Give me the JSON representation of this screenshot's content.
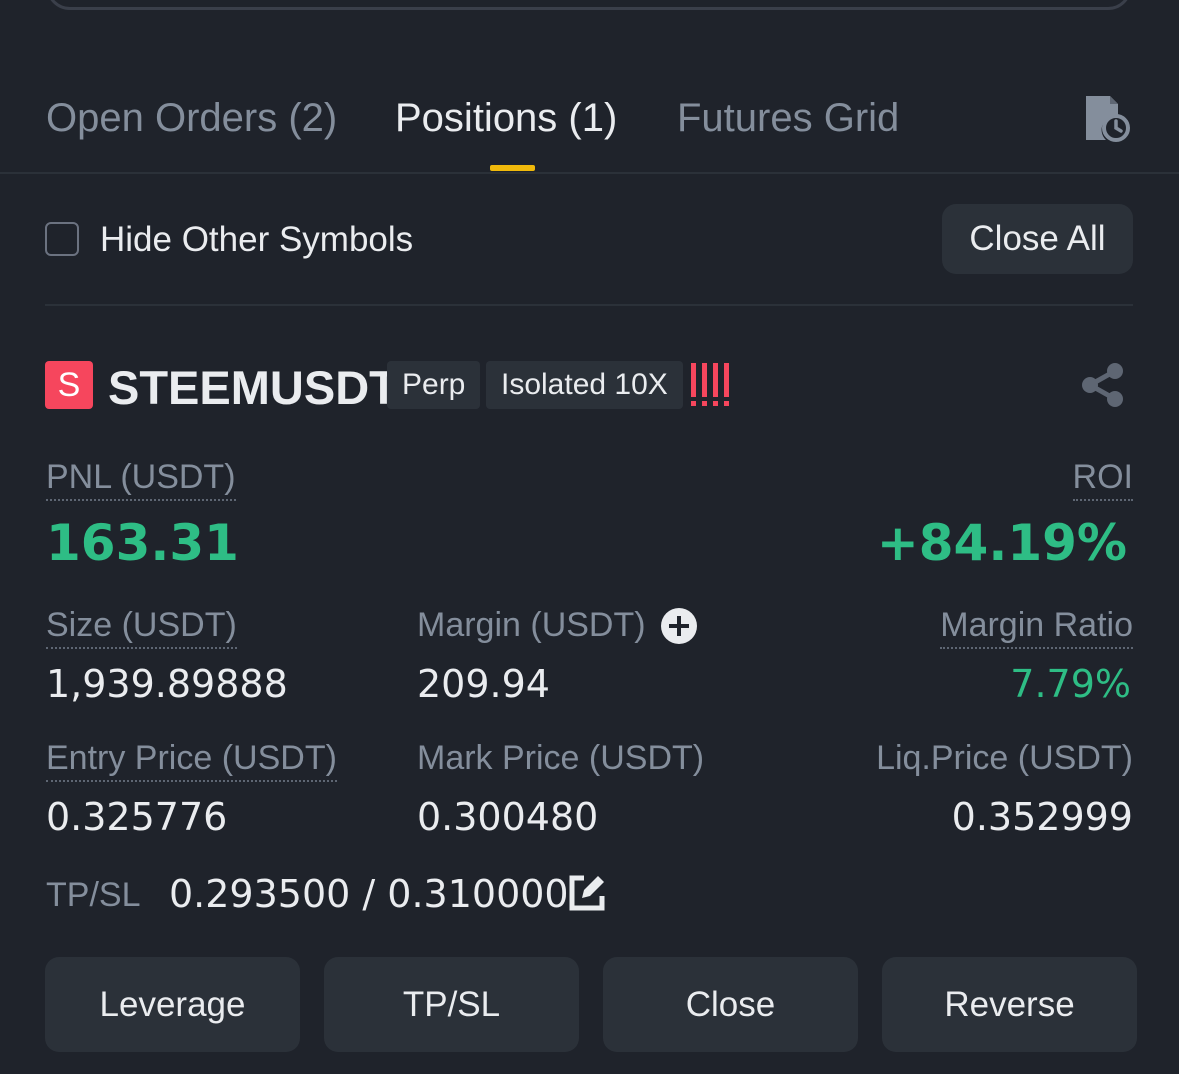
{
  "tabs": [
    {
      "label": "Open Orders (2)",
      "active": false
    },
    {
      "label": "Positions (1)",
      "active": true
    },
    {
      "label": "Futures Grid",
      "active": false
    }
  ],
  "icons": {
    "history": "history-clock-icon",
    "share": "share-icon",
    "plus": "plus-circle-icon",
    "edit": "edit-icon",
    "risk": "risk-bars-icon"
  },
  "filter": {
    "hide_other_symbols": "Hide Other Symbols",
    "checked": false,
    "close_all": "Close All"
  },
  "position": {
    "badge": "S",
    "symbol": "STEEMUSDT",
    "type": "Perp",
    "margin_mode": "Isolated 10X",
    "pnl_label": "PNL (USDT)",
    "pnl_value": "163.31",
    "roi_label": "ROI",
    "roi_value": "+84.19%",
    "size_label": "Size (USDT)",
    "size_value": "1,939.89888",
    "margin_label": "Margin (USDT)",
    "margin_value": "209.94",
    "margin_ratio_label": "Margin Ratio",
    "margin_ratio_value": "7.79%",
    "entry_label": "Entry Price (USDT)",
    "entry_value": "0.325776",
    "mark_label": "Mark Price (USDT)",
    "mark_value": "0.300480",
    "liq_label": "Liq.Price (USDT)",
    "liq_value": "0.352999",
    "tpsl_label": "TP/SL",
    "tpsl_value": "0.293500 / 0.310000"
  },
  "actions": {
    "leverage": "Leverage",
    "tpsl": "TP/SL",
    "close": "Close",
    "reverse": "Reverse"
  },
  "colors": {
    "accent": "#f0b90b",
    "positive": "#2ebd85",
    "negative": "#f6465d",
    "background": "#1f232b",
    "surface": "#2b3139"
  }
}
